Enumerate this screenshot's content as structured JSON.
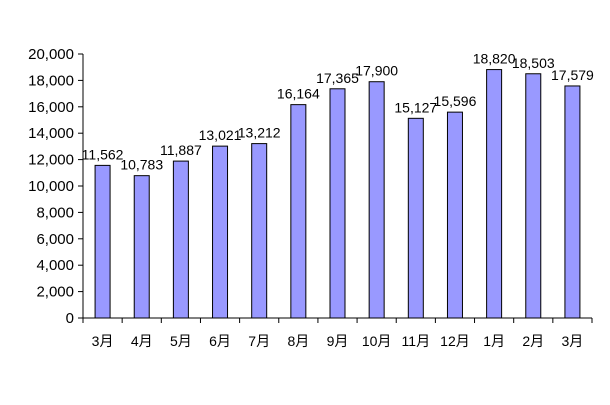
{
  "chart_data": {
    "type": "bar",
    "categories": [
      "3月",
      "4月",
      "5月",
      "6月",
      "7月",
      "8月",
      "9月",
      "10月",
      "11月",
      "12月",
      "1月",
      "2月",
      "3月"
    ],
    "values": [
      11562,
      10783,
      11887,
      13021,
      13212,
      16164,
      17365,
      17900,
      15127,
      15596,
      18820,
      18503,
      17579
    ],
    "data_labels": [
      "11,562",
      "10,783",
      "11,887",
      "13,021",
      "13,212",
      "16,164",
      "17,365",
      "17,900",
      "15,127",
      "15,596",
      "18,820",
      "18,503",
      "17,579"
    ],
    "y_ticks": [
      "0",
      "2,000",
      "4,000",
      "6,000",
      "8,000",
      "10,000",
      "12,000",
      "14,000",
      "16,000",
      "18,000",
      "20,000"
    ],
    "ylim": [
      0,
      20000
    ],
    "title": "",
    "xlabel": "",
    "ylabel": "",
    "grid": false,
    "legend": "none",
    "colors": {
      "bar_fill": "#9999ff",
      "bar_stroke": "#000000",
      "axis": "#000000"
    }
  }
}
